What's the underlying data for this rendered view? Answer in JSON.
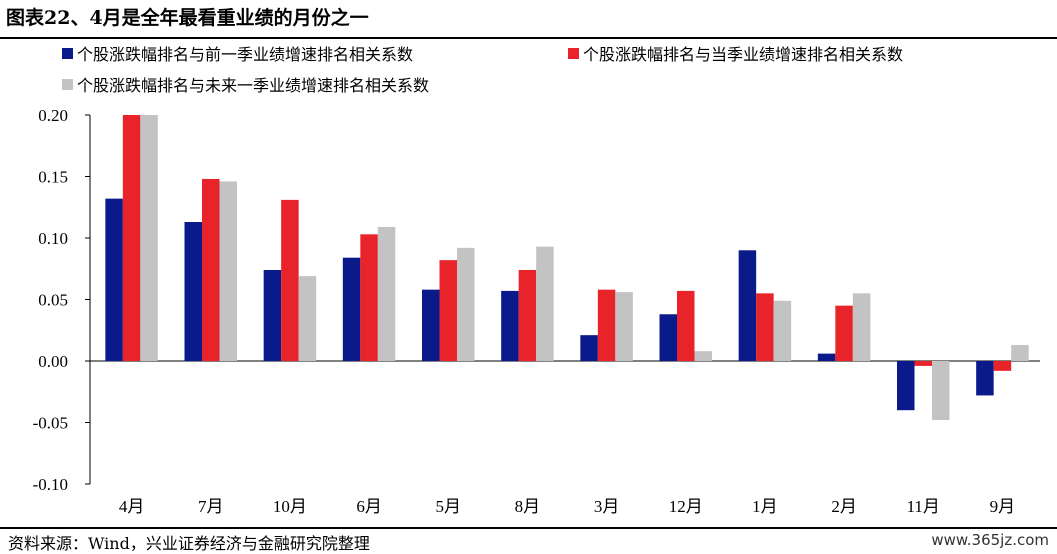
{
  "title": "图表22、4月是全年最看重业绩的月份之一",
  "source": "资料来源：Wind，兴业证券经济与金融研究院整理",
  "watermark": "www.365jz.com",
  "colors": {
    "series1": "#0a1a8a",
    "series2": "#e8232a",
    "series3": "#c3c3c3"
  },
  "chart_data": {
    "type": "bar",
    "categories": [
      "4月",
      "7月",
      "10月",
      "6月",
      "5月",
      "8月",
      "3月",
      "12月",
      "1月",
      "2月",
      "11月",
      "9月"
    ],
    "series": [
      {
        "name": "个股涨跌幅排名与前一季业绩增速排名相关系数",
        "values": [
          0.132,
          0.113,
          0.074,
          0.084,
          0.058,
          0.057,
          0.021,
          0.038,
          0.09,
          0.006,
          -0.04,
          -0.028
        ]
      },
      {
        "name": "个股涨跌幅排名与当季业绩增速排名相关系数",
        "values": [
          0.2,
          0.148,
          0.131,
          0.103,
          0.082,
          0.074,
          0.058,
          0.057,
          0.055,
          0.045,
          -0.004,
          -0.008
        ]
      },
      {
        "name": "个股涨跌幅排名与未来一季业绩增速排名相关系数",
        "values": [
          0.2,
          0.146,
          0.069,
          0.109,
          0.092,
          0.093,
          0.056,
          0.008,
          0.049,
          0.055,
          -0.048,
          0.013
        ]
      }
    ],
    "ylim": [
      -0.1,
      0.2
    ],
    "yticks": [
      "0.20",
      "0.15",
      "0.10",
      "0.05",
      "0.00",
      "-0.05",
      "-0.10"
    ],
    "legend": "top",
    "grid": false
  }
}
